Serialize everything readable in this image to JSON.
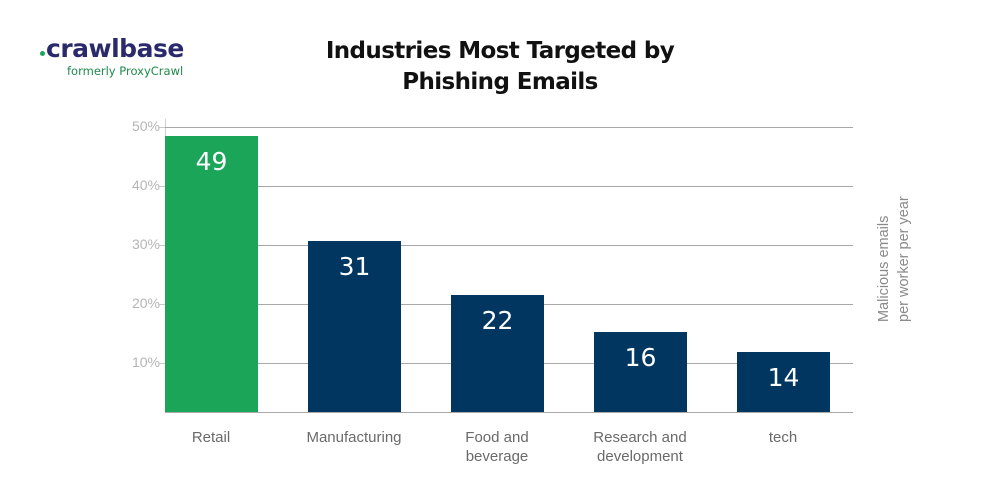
{
  "logo": {
    "brand": "crawlbase",
    "subtitle": "formerly ProxyCrawl",
    "brand_color": "#2a2a6b",
    "accent_color": "#1fa55a"
  },
  "chart_data": {
    "type": "bar",
    "title": "Industries Most Targeted by Phishing Emails",
    "title_lines": [
      "Industries Most Targeted by",
      "Phishing Emails"
    ],
    "categories": [
      "Retail",
      "Manufacturing",
      "Food and beverage",
      "Research and development",
      "tech"
    ],
    "category_lines": [
      [
        "Retail"
      ],
      [
        "Manufacturing"
      ],
      [
        "Food and",
        "beverage"
      ],
      [
        "Research and",
        "development"
      ],
      [
        "tech"
      ]
    ],
    "values": [
      49,
      31,
      22,
      16,
      14
    ],
    "value_labels": [
      "49",
      "31",
      "22",
      "16",
      "14"
    ],
    "bar_heights_pct": [
      48.5,
      30,
      20.5,
      14,
      10.5
    ],
    "colors": [
      "#1ba558",
      "#003660",
      "#003660",
      "#003660",
      "#003660"
    ],
    "xlabel": "",
    "ylabel": "Malicious emails per worker per year",
    "ylabel_lines": [
      "Malicious emails",
      "per worker per year"
    ],
    "yticks": [
      "10%",
      "20%",
      "30%",
      "40%",
      "50%"
    ],
    "ylim": [
      0,
      50
    ],
    "grid": true,
    "legend": null
  }
}
